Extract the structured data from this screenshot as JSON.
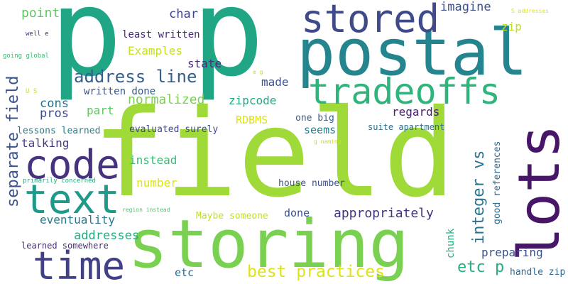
{
  "palette": {
    "purple": "#440154",
    "indigo": "#443a83",
    "blue": "#31688e",
    "teal": "#21918c",
    "green": "#35b779",
    "lime": "#90d743",
    "yellow": "#dde318"
  },
  "words": [
    {
      "id": "p1",
      "text": "p",
      "color": "#21a685"
    },
    {
      "id": "p2",
      "text": "p",
      "color": "#21a685"
    },
    {
      "id": "postal",
      "text": "postal",
      "color": "#25858e"
    },
    {
      "id": "field-big",
      "text": "field",
      "color": "#a0da39"
    },
    {
      "id": "lots",
      "text": "lots",
      "color": "#481668"
    },
    {
      "id": "storing",
      "text": "storing",
      "color": "#7ad151"
    },
    {
      "id": "stored",
      "text": "stored",
      "color": "#3e4a89"
    },
    {
      "id": "tradeoffs",
      "text": "tradeoffs",
      "color": "#2fb47c"
    },
    {
      "id": "code",
      "text": "code",
      "color": "#46327e"
    },
    {
      "id": "text",
      "text": "text",
      "color": "#1f9a8a"
    },
    {
      "id": "time",
      "text": "time",
      "color": "#424086"
    },
    {
      "id": "address-line",
      "text": "address line",
      "color": "#355f8d"
    },
    {
      "id": "separate-field",
      "text": "separate field",
      "color": "#3b528b"
    },
    {
      "id": "integer-vs",
      "text": "integer vs",
      "color": "#2c728e"
    },
    {
      "id": "best-practices",
      "text": "best practices",
      "color": "#dde318"
    },
    {
      "id": "etc-p",
      "text": "etc p",
      "color": "#28ae80"
    },
    {
      "id": "point",
      "text": "point",
      "color": "#5ec962"
    },
    {
      "id": "char",
      "text": "char",
      "color": "#414487"
    },
    {
      "id": "imagine",
      "text": "imagine",
      "color": "#3b528b"
    },
    {
      "id": "zip",
      "text": "zip",
      "color": "#c2df23"
    },
    {
      "id": "least-written",
      "text": "least written",
      "color": "#482878"
    },
    {
      "id": "examples",
      "text": "Examples",
      "color": "#c8e020"
    },
    {
      "id": "state",
      "text": "state",
      "color": "#472d7b"
    },
    {
      "id": "made",
      "text": "made",
      "color": "#3b528b"
    },
    {
      "id": "written-done",
      "text": "written done",
      "color": "#39568c"
    },
    {
      "id": "normalized",
      "text": "normalized",
      "color": "#7ad151"
    },
    {
      "id": "cons",
      "text": "cons",
      "color": "#2d708e"
    },
    {
      "id": "part",
      "text": "part",
      "color": "#5ec962"
    },
    {
      "id": "zipcode",
      "text": "zipcode",
      "color": "#22a884"
    },
    {
      "id": "regards",
      "text": "regards",
      "color": "#482173"
    },
    {
      "id": "pros",
      "text": "pros",
      "color": "#3e4a89"
    },
    {
      "id": "rdbms",
      "text": "RDBMS",
      "color": "#dde318"
    },
    {
      "id": "one-big",
      "text": "one big",
      "color": "#34618d"
    },
    {
      "id": "seems",
      "text": "seems",
      "color": "#26818e"
    },
    {
      "id": "suite-apartment",
      "text": "suite apartment",
      "color": "#2e6e8e"
    },
    {
      "id": "lessons-learned",
      "text": "lessons learned",
      "color": "#277f8e"
    },
    {
      "id": "evaluated-surely",
      "text": "evaluated surely",
      "color": "#3e4989"
    },
    {
      "id": "talking",
      "text": "talking",
      "color": "#453781"
    },
    {
      "id": "instead",
      "text": "instead",
      "color": "#3cbb75"
    },
    {
      "id": "number",
      "text": "number",
      "color": "#dde318"
    },
    {
      "id": "house-number",
      "text": "house number",
      "color": "#3b528b"
    },
    {
      "id": "eventuality",
      "text": "eventuality",
      "color": "#2a788e"
    },
    {
      "id": "maybe-someone",
      "text": "Maybe someone",
      "color": "#c8e020"
    },
    {
      "id": "done",
      "text": "done",
      "color": "#3b528b"
    },
    {
      "id": "appropriately",
      "text": "appropriately",
      "color": "#46327e"
    },
    {
      "id": "addresses",
      "text": "addresses",
      "color": "#25ab82"
    },
    {
      "id": "learned-somewhere",
      "text": "learned somewhere",
      "color": "#472c7a"
    },
    {
      "id": "etc",
      "text": "etc",
      "color": "#31688e"
    },
    {
      "id": "preparing",
      "text": "preparing",
      "color": "#3b528b"
    },
    {
      "id": "handle-zip",
      "text": "handle zip",
      "color": "#31688e"
    },
    {
      "id": "chunk",
      "text": "chunk",
      "color": "#2ab07f"
    },
    {
      "id": "good-references",
      "text": "good references",
      "color": "#2f6c8e"
    },
    {
      "id": "well-e",
      "text": "well e",
      "color": "#482878"
    },
    {
      "id": "going-global",
      "text": "going global",
      "color": "#3dbc74"
    },
    {
      "id": "u-s",
      "text": "U S",
      "color": "#c2df23"
    },
    {
      "id": "e-g",
      "text": "e g",
      "color": "#c8e020"
    },
    {
      "id": "s-addresses",
      "text": "S addresses",
      "color": "#dde318"
    },
    {
      "id": "g-naming",
      "text": "g naming",
      "color": "#c8e020"
    },
    {
      "id": "primarily-concerned",
      "text": "primarily concerned",
      "color": "#23a983"
    },
    {
      "id": "region-instead",
      "text": "region instead",
      "color": "#4ec36b"
    }
  ]
}
